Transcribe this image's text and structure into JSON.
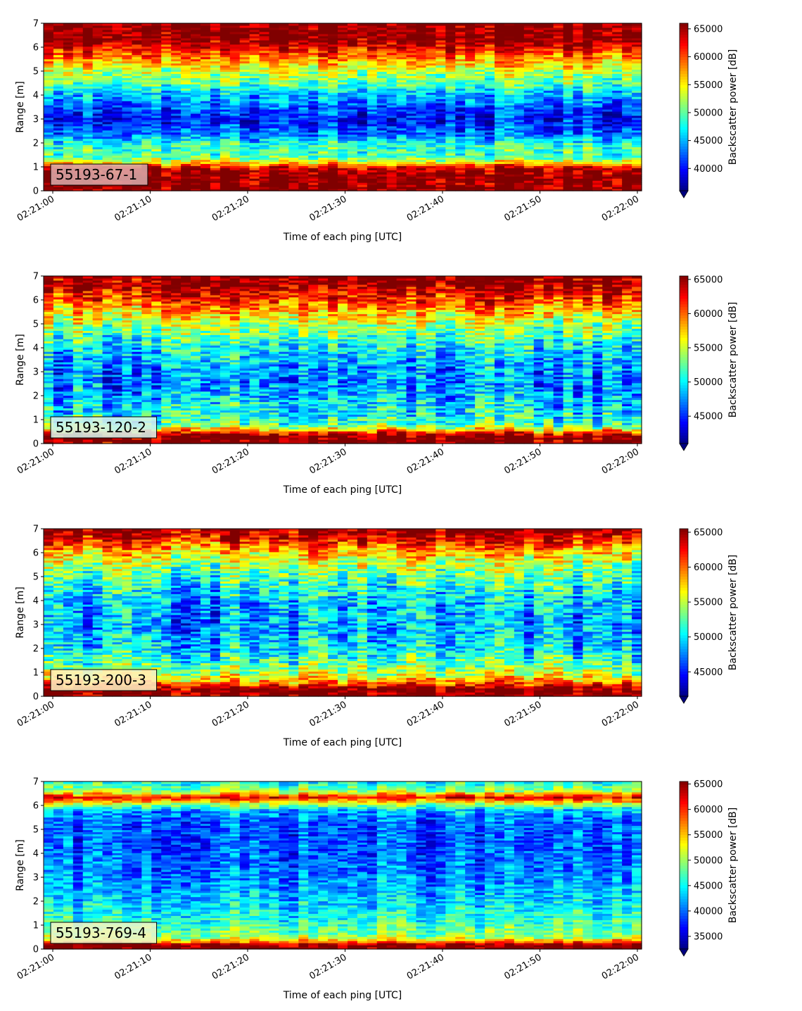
{
  "chart_data": [
    {
      "type": "heatmap",
      "annotation": "55193-67-1",
      "annotation_bg": "#d8a8a8",
      "xlabel": "Time of each ping [UTC]",
      "ylabel": "Range [m]",
      "colorbar_label": "Backscatter power [dB]",
      "x_range": [
        "02:21:00",
        "02:22:00"
      ],
      "x_ticks": [
        "02:21:00",
        "02:21:10",
        "02:21:20",
        "02:21:30",
        "02:21:40",
        "02:21:50",
        "02:22:00"
      ],
      "y_ticks": [
        "0",
        "1",
        "2",
        "3",
        "4",
        "5",
        "6",
        "7"
      ],
      "ylim": [
        0,
        7
      ],
      "colorbar_range": [
        36000,
        66000
      ],
      "colorbar_ticks": [
        "40000",
        "45000",
        "50000",
        "55000",
        "60000",
        "65000"
      ],
      "colorbar_tick_values": [
        40000,
        45000,
        50000,
        55000,
        60000,
        65000
      ],
      "colormap": "jet",
      "colorbar_extend": "min",
      "profile": {
        "range_m": [
          0.0,
          0.25,
          0.6,
          0.95,
          1.15,
          1.4,
          1.9,
          2.4,
          3.0,
          3.6,
          4.1,
          4.5,
          5.0,
          5.5,
          6.0,
          6.4,
          7.0
        ],
        "backscatter": [
          66000,
          66000,
          66000,
          64000,
          57000,
          50000,
          49000,
          43000,
          40000,
          43000,
          46000,
          50000,
          53000,
          58000,
          63000,
          66000,
          66000
        ]
      }
    },
    {
      "type": "heatmap",
      "annotation": "55193-120-2",
      "annotation_bg": "#d6f2ea",
      "xlabel": "Time of each ping [UTC]",
      "ylabel": "Range [m]",
      "colorbar_label": "Backscatter power [dB]",
      "x_range": [
        "02:21:00",
        "02:22:00"
      ],
      "x_ticks": [
        "02:21:00",
        "02:21:10",
        "02:21:20",
        "02:21:30",
        "02:21:40",
        "02:21:50",
        "02:22:00"
      ],
      "y_ticks": [
        "0",
        "1",
        "2",
        "3",
        "4",
        "5",
        "6",
        "7"
      ],
      "ylim": [
        0,
        7
      ],
      "colorbar_range": [
        41000,
        65500
      ],
      "colorbar_ticks": [
        "45000",
        "50000",
        "55000",
        "60000",
        "65000"
      ],
      "colorbar_tick_values": [
        45000,
        50000,
        55000,
        60000,
        65000
      ],
      "colormap": "jet",
      "colorbar_extend": "min",
      "profile": {
        "range_m": [
          0.0,
          0.35,
          0.55,
          0.8,
          1.2,
          1.8,
          2.5,
          3.0,
          3.5,
          4.0,
          4.5,
          5.0,
          5.5,
          6.0,
          6.5,
          7.0
        ],
        "backscatter": [
          65500,
          65500,
          58000,
          52000,
          50000,
          49000,
          47000,
          47500,
          48500,
          50000,
          52000,
          54500,
          57500,
          61000,
          64000,
          65500
        ]
      }
    },
    {
      "type": "heatmap",
      "annotation": "55193-200-3",
      "annotation_bg": "#fff0c0",
      "xlabel": "Time of each ping [UTC]",
      "ylabel": "Range [m]",
      "colorbar_label": "Backscatter power [dB]",
      "x_range": [
        "02:21:00",
        "02:22:00"
      ],
      "x_ticks": [
        "02:21:00",
        "02:21:10",
        "02:21:20",
        "02:21:30",
        "02:21:40",
        "02:21:50",
        "02:22:00"
      ],
      "y_ticks": [
        "0",
        "1",
        "2",
        "3",
        "4",
        "5",
        "6",
        "7"
      ],
      "ylim": [
        0,
        7
      ],
      "colorbar_range": [
        41500,
        65500
      ],
      "colorbar_ticks": [
        "45000",
        "50000",
        "55000",
        "60000",
        "65000"
      ],
      "colorbar_tick_values": [
        45000,
        50000,
        55000,
        60000,
        65000
      ],
      "colormap": "jet",
      "colorbar_extend": "min",
      "profile": {
        "range_m": [
          0.0,
          0.3,
          0.55,
          0.9,
          1.4,
          2.0,
          3.0,
          3.8,
          4.4,
          5.0,
          5.6,
          6.1,
          6.6,
          7.0
        ],
        "backscatter": [
          65500,
          65500,
          60000,
          55000,
          52000,
          49500,
          48000,
          48500,
          50000,
          52000,
          54500,
          58000,
          62500,
          65000
        ]
      }
    },
    {
      "type": "heatmap",
      "annotation": "55193-769-4",
      "annotation_bg": "#eef5c8",
      "xlabel": "Time of each ping [UTC]",
      "ylabel": "Range [m]",
      "colorbar_label": "Backscatter power [dB]",
      "x_range": [
        "02:21:00",
        "02:22:00"
      ],
      "x_ticks": [
        "02:21:00",
        "02:21:10",
        "02:21:20",
        "02:21:30",
        "02:21:40",
        "02:21:50",
        "02:22:00"
      ],
      "y_ticks": [
        "0",
        "1",
        "2",
        "3",
        "4",
        "5",
        "6",
        "7"
      ],
      "ylim": [
        0,
        7
      ],
      "colorbar_range": [
        32500,
        65500
      ],
      "colorbar_ticks": [
        "35000",
        "40000",
        "45000",
        "50000",
        "55000",
        "60000",
        "65000"
      ],
      "colorbar_tick_values": [
        35000,
        40000,
        45000,
        50000,
        55000,
        60000,
        65000
      ],
      "colormap": "jet",
      "colorbar_extend": "min",
      "profile": {
        "range_m": [
          0.0,
          0.2,
          0.3,
          0.5,
          0.8,
          1.2,
          1.8,
          2.5,
          3.5,
          4.5,
          5.3,
          5.8,
          6.1,
          6.35,
          6.6,
          7.0
        ],
        "backscatter": [
          65500,
          65500,
          58000,
          50000,
          48000,
          46000,
          44000,
          42000,
          40000,
          39000,
          39500,
          42000,
          52000,
          62000,
          50000,
          45000
        ]
      }
    }
  ]
}
